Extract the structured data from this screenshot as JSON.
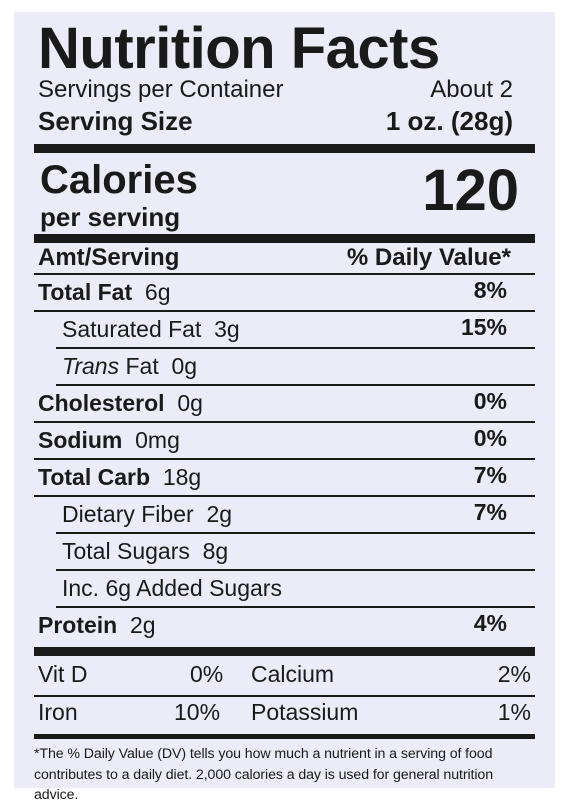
{
  "title": "Nutrition Facts",
  "servings_label": "Servings per Container",
  "servings_value": "About 2",
  "serving_size_label": "Serving Size",
  "serving_size_value": "1 oz. (28g)",
  "calories_label": "Calories",
  "calories_sub": "per serving",
  "calories_value": "120",
  "amt_label": "Amt/Serving",
  "dv_label": "% Daily Value*",
  "nutrients": [
    {
      "name": "Total Fat",
      "amount": "6g",
      "dv": "8%",
      "bold": true
    },
    {
      "name": "Saturated Fat",
      "amount": "3g",
      "dv": "15%",
      "bold": false
    },
    {
      "name_italic": "Trans",
      "name": " Fat",
      "amount": "0g",
      "dv": "",
      "bold": false
    },
    {
      "name": "Cholesterol",
      "amount": "0g",
      "dv": "0%",
      "bold": true
    },
    {
      "name": "Sodium",
      "amount": "0mg",
      "dv": "0%",
      "bold": true
    },
    {
      "name": "Total Carb",
      "amount": "18g",
      "dv": "7%",
      "bold": true
    },
    {
      "name": "Dietary Fiber",
      "amount": "2g",
      "dv": "7%",
      "bold": false
    },
    {
      "name": "Total Sugars",
      "amount": "8g",
      "dv": "",
      "bold": false
    },
    {
      "name": "Inc. 6g Added Sugars",
      "amount": "",
      "dv": "",
      "bold": false
    },
    {
      "name": "Protein",
      "amount": "2g",
      "dv": "4%",
      "bold": true
    }
  ],
  "vitamins": [
    {
      "name": "Vit D",
      "value": "0%",
      "name2": "Calcium",
      "value2": "2%"
    },
    {
      "name": "Iron",
      "value": "10%",
      "name2": "Potassium",
      "value2": "1%"
    }
  ],
  "footnote_1": "*The % Daily Value (DV) tells you how much a nutrient in a serving of food",
  "footnote_2": "contributes to a daily diet. 2,000 calories a day is used for general nutrition advice."
}
